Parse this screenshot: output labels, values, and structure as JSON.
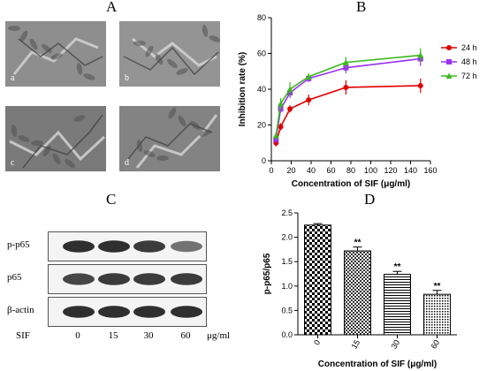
{
  "panel_a": {
    "letter": "A",
    "images": [
      {
        "sub": "a",
        "tone": "#8e8e8e"
      },
      {
        "sub": "b",
        "tone": "#949494"
      },
      {
        "sub": "c",
        "tone": "#7a7a7a"
      },
      {
        "sub": "d",
        "tone": "#838383"
      }
    ]
  },
  "panel_b": {
    "letter": "B"
  },
  "panel_c": {
    "letter": "C",
    "rows": [
      {
        "label": "p-p65",
        "intensities": [
          0.9,
          0.9,
          0.85,
          0.6
        ]
      },
      {
        "label": "p65",
        "intensities": [
          0.8,
          0.85,
          0.85,
          0.85
        ]
      },
      {
        "label": "β-actin",
        "intensities": [
          0.9,
          0.9,
          0.9,
          0.9
        ]
      }
    ],
    "treatment_label": "SIF",
    "lanes": [
      "0",
      "15",
      "30",
      "60"
    ],
    "unit": "μg/ml"
  },
  "panel_d": {
    "letter": "D"
  },
  "chart_data": [
    {
      "type": "line",
      "xlabel": "Concentration of SIF (μg/ml)",
      "ylabel": "Inhibition rate (%)",
      "xlim": [
        0,
        160
      ],
      "ylim": [
        0,
        80
      ],
      "xticks": [
        "0",
        "20",
        "40",
        "60",
        "80",
        "100",
        "120",
        "140",
        "160"
      ],
      "yticks": [
        "0",
        "20",
        "40",
        "60",
        "80"
      ],
      "x": [
        4.7,
        9.4,
        18.75,
        37.5,
        75,
        150
      ],
      "legend": "top-right",
      "series": [
        {
          "name": "24 h",
          "color": "#e00000",
          "marker": "circle",
          "values": [
            10,
            19,
            29,
            34,
            41,
            42
          ],
          "errors": [
            2,
            2,
            2,
            3,
            4,
            4
          ]
        },
        {
          "name": "48 h",
          "color": "#9a32f0",
          "marker": "square",
          "values": [
            12,
            29,
            38,
            46,
            52,
            57
          ],
          "errors": [
            2,
            2,
            3,
            2,
            3,
            4
          ]
        },
        {
          "name": "72 h",
          "color": "#3cb81e",
          "marker": "triangle",
          "values": [
            14,
            32,
            40,
            47,
            55,
            59
          ],
          "errors": [
            2,
            3,
            4,
            2,
            3,
            4
          ]
        }
      ]
    },
    {
      "type": "bar",
      "xlabel": "Concentration of SIF (μg/ml)",
      "ylabel": "p-p65/p65",
      "categories": [
        "0",
        "15",
        "30",
        "60"
      ],
      "values": [
        2.25,
        1.72,
        1.24,
        0.83
      ],
      "errors": [
        0.03,
        0.08,
        0.06,
        0.08
      ],
      "annotations": [
        "",
        "**",
        "**",
        "**"
      ],
      "ylim": [
        0,
        2.5
      ],
      "yticks": [
        "0.0",
        "0.5",
        "1.0",
        "1.5",
        "2.0",
        "2.5"
      ],
      "patterns": [
        "checker",
        "fine-checker",
        "hlines",
        "dots"
      ]
    }
  ]
}
